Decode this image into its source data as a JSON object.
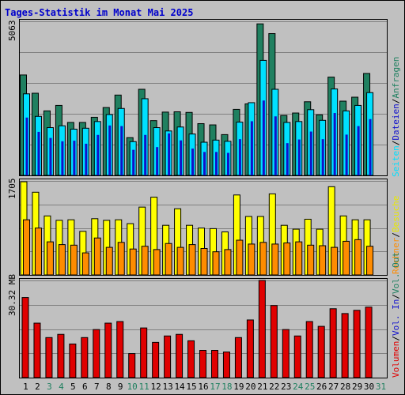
{
  "title": "Tages-Statistik im Monat Mai 2025",
  "colors": {
    "title": "#0000cc",
    "panel_bg": "#c0c0c0",
    "grid": "#808080",
    "anfragen": "#208060",
    "dateien": "#00e0ff",
    "seiten": "#1010cc",
    "besuche": "#ffff00",
    "rechner": "#ff8c00",
    "volumen": "#e00000",
    "weekend_day": "#208060"
  },
  "legend": {
    "anfragen": "Anfragen",
    "dateien": "Dateien",
    "seiten": "Seiten",
    "besuche": "Besuche",
    "rechner": "Rechner",
    "vol_out": "Vol. Out",
    "vol_in": "Vol. In",
    "volumen": "Volumen",
    "sep": "/"
  },
  "chart_data": [
    {
      "type": "bar",
      "panel": "top",
      "max_label": "5063",
      "ylim": [
        0,
        5063
      ],
      "x": [
        1,
        2,
        3,
        4,
        5,
        6,
        7,
        8,
        9,
        10,
        11,
        12,
        13,
        14,
        15,
        16,
        17,
        18,
        19,
        20,
        21,
        22,
        23,
        24,
        25,
        26,
        27,
        28,
        29,
        30,
        31
      ],
      "series": [
        {
          "name": "Anfragen",
          "values": [
            3300,
            2700,
            2120,
            2300,
            1740,
            1740,
            1910,
            2230,
            2640,
            1240,
            2830,
            1800,
            2080,
            2090,
            2070,
            1700,
            1660,
            1340,
            2170,
            2350,
            4980,
            4660,
            1970,
            2050,
            2420,
            1990,
            3230,
            2440,
            2570,
            3350,
            0
          ]
        },
        {
          "name": "Dateien",
          "values": [
            2680,
            1940,
            1570,
            1630,
            1520,
            1550,
            1770,
            2000,
            2200,
            1110,
            2520,
            1570,
            1460,
            1590,
            1360,
            1090,
            1160,
            1120,
            1750,
            2390,
            3780,
            2830,
            1740,
            1770,
            2160,
            1810,
            2840,
            2120,
            2300,
            2720,
            0
          ]
        },
        {
          "name": "Seiten",
          "values": [
            1900,
            1430,
            1230,
            1120,
            1140,
            1040,
            1330,
            1640,
            1620,
            840,
            1330,
            930,
            1380,
            1150,
            880,
            770,
            770,
            740,
            1190,
            1780,
            2460,
            1940,
            1060,
            1180,
            1440,
            1190,
            2050,
            1340,
            1620,
            1850,
            0
          ]
        }
      ]
    },
    {
      "type": "bar",
      "panel": "middle",
      "max_label": "1705",
      "ylim": [
        0,
        1705
      ],
      "x": [
        1,
        2,
        3,
        4,
        5,
        6,
        7,
        8,
        9,
        10,
        11,
        12,
        13,
        14,
        15,
        16,
        17,
        18,
        19,
        20,
        21,
        22,
        23,
        24,
        25,
        26,
        27,
        28,
        29,
        30,
        31
      ],
      "series": [
        {
          "name": "Besuche",
          "values": [
            1690,
            1500,
            1070,
            990,
            1000,
            790,
            1020,
            990,
            1000,
            930,
            1230,
            1410,
            900,
            1200,
            900,
            850,
            840,
            780,
            1450,
            1060,
            1060,
            1470,
            900,
            830,
            1010,
            830,
            1600,
            1070,
            1000,
            1000,
            0
          ]
        },
        {
          "name": "Rechner",
          "values": [
            1000,
            850,
            600,
            550,
            540,
            400,
            670,
            500,
            590,
            470,
            520,
            460,
            570,
            500,
            550,
            480,
            420,
            460,
            630,
            560,
            590,
            560,
            580,
            600,
            540,
            530,
            500,
            610,
            640,
            520,
            0
          ]
        }
      ]
    },
    {
      "type": "bar",
      "panel": "bottom",
      "max_label": "30.32 MB",
      "ylim": [
        0,
        30.32
      ],
      "x": [
        1,
        2,
        3,
        4,
        5,
        6,
        7,
        8,
        9,
        10,
        11,
        12,
        13,
        14,
        15,
        16,
        17,
        18,
        19,
        20,
        21,
        22,
        23,
        24,
        25,
        26,
        27,
        28,
        29,
        30,
        31
      ],
      "series": [
        {
          "name": "Volumen",
          "values": [
            25.0,
            17.0,
            12.5,
            13.5,
            10.5,
            12.5,
            15.0,
            17.0,
            17.5,
            7.5,
            15.5,
            11.0,
            13.0,
            13.5,
            11.5,
            8.5,
            8.5,
            8.0,
            12.5,
            18.0,
            30.32,
            22.5,
            15.0,
            13.0,
            17.5,
            16.0,
            21.5,
            20.0,
            21.0,
            22.0,
            0
          ]
        }
      ]
    }
  ],
  "x_labels": [
    "1",
    "2",
    "3",
    "4",
    "5",
    "6",
    "7",
    "8",
    "9",
    "10",
    "11",
    "12",
    "13",
    "14",
    "15",
    "16",
    "17",
    "18",
    "19",
    "20",
    "21",
    "22",
    "23",
    "24",
    "25",
    "26",
    "27",
    "28",
    "29",
    "30",
    "31"
  ],
  "weekend_days": [
    3,
    4,
    10,
    11,
    17,
    18,
    24,
    25,
    31
  ]
}
